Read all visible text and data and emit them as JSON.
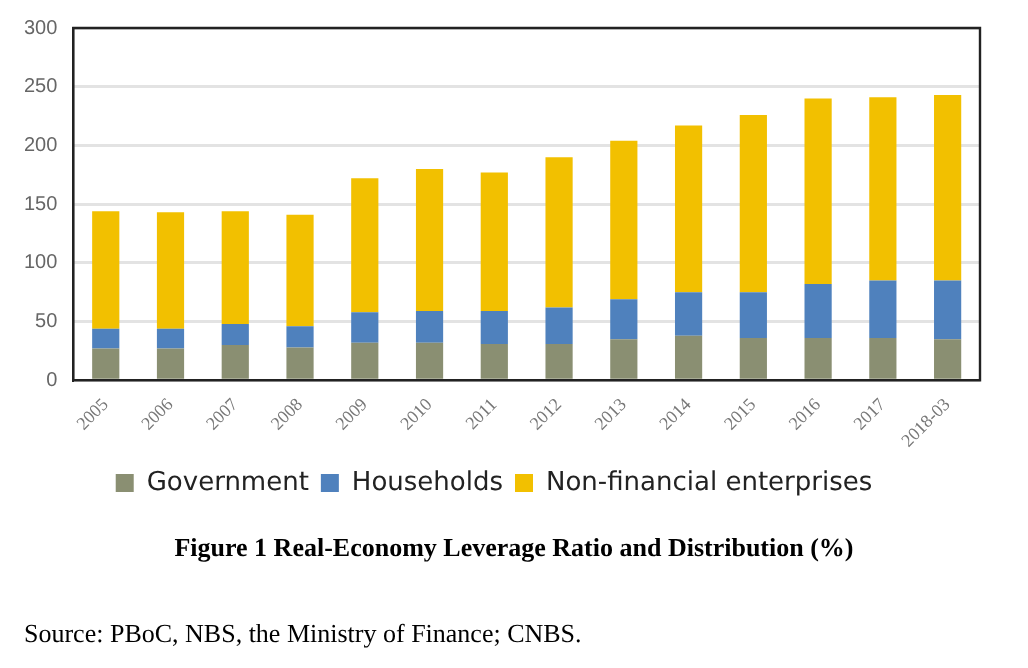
{
  "chart_data": {
    "type": "bar",
    "title": "Figure 1 Real-Economy Leverage Ratio and Distribution (%)",
    "categories": [
      "2005",
      "2006",
      "2007",
      "2008",
      "2009",
      "2010",
      "2011",
      "2012",
      "2013",
      "2014",
      "2015",
      "2016",
      "2017",
      "2018-03"
    ],
    "stacked": true,
    "series": [
      {
        "name": "Government",
        "color": "#8a8f72",
        "values": [
          27,
          27,
          30,
          28,
          32,
          32,
          31,
          31,
          35,
          38,
          36,
          36,
          36,
          35
        ]
      },
      {
        "name": "Households",
        "color": "#4f81bd",
        "values": [
          17,
          17,
          18,
          18,
          26,
          27,
          28,
          31,
          34,
          37,
          39,
          46,
          49,
          50
        ]
      },
      {
        "name": "Non-financial enterprises",
        "color": "#f2c000",
        "values": [
          100,
          99,
          96,
          95,
          114,
          121,
          118,
          128,
          135,
          142,
          151,
          158,
          156,
          158
        ]
      }
    ],
    "ylim": [
      0,
      300
    ],
    "yticks": [
      0,
      50,
      100,
      150,
      200,
      250,
      300
    ],
    "grid": "y",
    "legend": "bottom",
    "annotations": [
      "Source: PBoC, NBS, the Ministry of Finance; CNBS."
    ]
  }
}
